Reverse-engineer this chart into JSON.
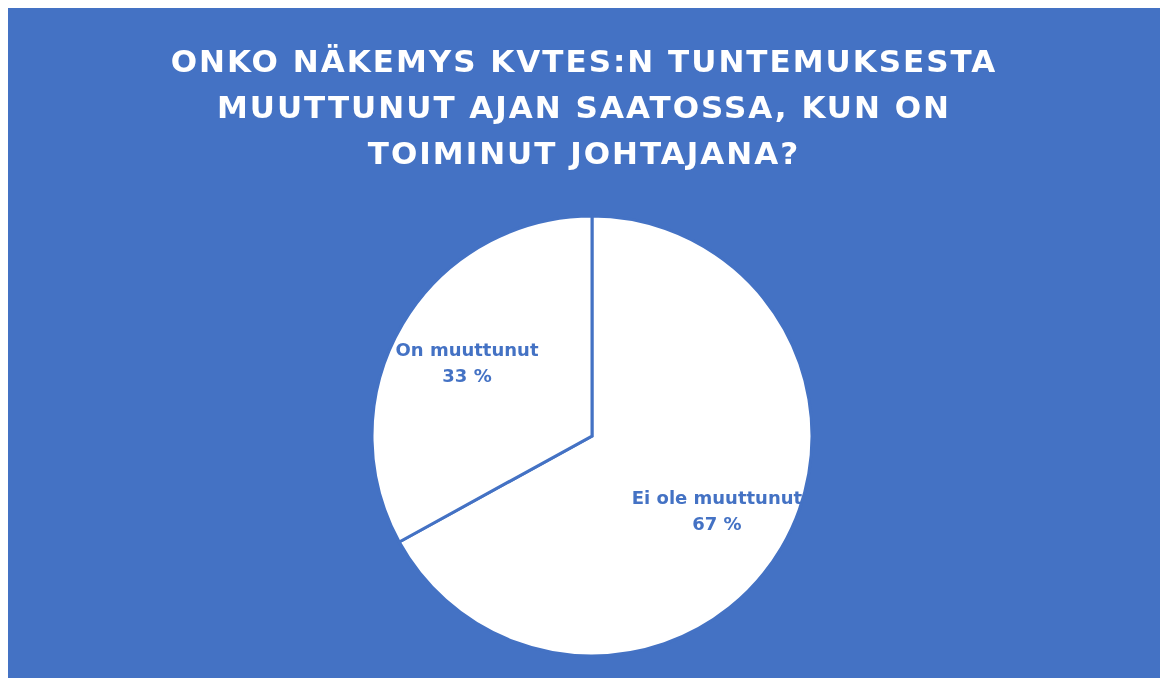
{
  "chart_data": {
    "type": "pie",
    "title": "ONKO NÄKEMYS KVTES:N TUNTEMUKSESTA MUUTTUNUT AJAN SAATOSSA, KUN ON TOIMINUT JOHTAJANA?",
    "categories": [
      "Ei ole muuttunut",
      "On muuttunut"
    ],
    "values": [
      67,
      33
    ],
    "value_labels": [
      "67 %",
      "33 %"
    ],
    "colors": [
      "#ffffff",
      "#ffffff"
    ],
    "legend": false
  }
}
